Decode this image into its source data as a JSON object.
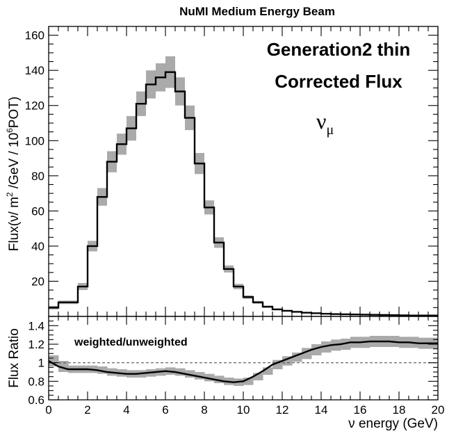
{
  "chart_data": [
    {
      "type": "histogram",
      "title": "NuMI Medium Energy Beam",
      "annotation_line1": "Generation2 thin",
      "annotation_line2": "Corrected Flux",
      "annotation_symbol": "ν",
      "annotation_subscript": "μ",
      "ylabel": {
        "main": "Flux(ν/ m",
        "sup1": "2",
        "mid": " /GeV / 10",
        "sup2": "6",
        "end": "POT)"
      },
      "xlim": [
        0,
        20
      ],
      "ylim": [
        0,
        165
      ],
      "yticks": [
        20,
        40,
        60,
        80,
        100,
        120,
        140,
        160
      ],
      "bin_edges": [
        0,
        0.5,
        1,
        1.5,
        2,
        2.5,
        3,
        3.5,
        4,
        4.5,
        5,
        5.5,
        6,
        6.5,
        7,
        7.5,
        8,
        8.5,
        9,
        9.5,
        10,
        10.5,
        11,
        11.5,
        12,
        12.5,
        13,
        13.5,
        14,
        14.5,
        15,
        15.5,
        16,
        16.5,
        17,
        17.5,
        18,
        18.5,
        19,
        19.5,
        20
      ],
      "values": [
        5,
        8,
        8,
        17,
        40,
        68,
        88,
        98,
        107,
        121,
        132,
        136,
        139,
        128,
        113,
        87,
        62,
        42,
        27,
        17,
        11,
        8,
        5.5,
        4,
        3.2,
        2.6,
        2.1,
        1.8,
        1.5,
        1.3,
        1.2,
        1.1,
        1,
        0.9,
        0.8,
        0.7,
        0.6,
        0.5,
        0.5,
        0.5
      ],
      "errors": [
        1,
        1,
        1,
        2,
        3,
        5,
        6,
        6,
        7,
        7,
        8,
        8,
        9,
        8,
        7,
        6,
        4,
        3,
        2,
        1.5,
        1,
        0.8,
        0.6,
        0.5,
        0.4,
        0.3,
        0.3,
        0.3,
        0.3,
        0.3,
        0.3,
        0.3,
        0.3,
        0.3,
        0.3,
        0.3,
        0.3,
        0.3,
        0.3,
        0.3
      ],
      "colors": {
        "line": "#000000",
        "band": "#aaaaaa"
      }
    },
    {
      "type": "line",
      "label": "weighted/unweighted",
      "ylabel": "Flux Ratio",
      "xlabel": "ν energy (GeV)",
      "xlim": [
        0,
        20
      ],
      "ylim": [
        0.6,
        1.5
      ],
      "xticks": [
        0,
        2,
        4,
        6,
        8,
        10,
        12,
        14,
        16,
        18,
        20
      ],
      "yticks": [
        0.6,
        0.8,
        1,
        1.2,
        1.4
      ],
      "reference_line": 1.0,
      "x": [
        0,
        0.5,
        1,
        1.5,
        2,
        2.5,
        3,
        3.5,
        4,
        4.5,
        5,
        5.5,
        6,
        6.5,
        7,
        7.5,
        8,
        8.5,
        9,
        9.5,
        10,
        10.5,
        11,
        11.5,
        12,
        12.5,
        13,
        13.5,
        14,
        14.5,
        15,
        15.5,
        16,
        16.5,
        17,
        17.5,
        18,
        18.5,
        19,
        19.5,
        20
      ],
      "values": [
        1.02,
        0.96,
        0.93,
        0.93,
        0.93,
        0.92,
        0.9,
        0.89,
        0.88,
        0.88,
        0.89,
        0.9,
        0.91,
        0.9,
        0.88,
        0.86,
        0.84,
        0.82,
        0.8,
        0.79,
        0.8,
        0.85,
        0.91,
        0.98,
        1.02,
        1.06,
        1.1,
        1.14,
        1.17,
        1.19,
        1.2,
        1.22,
        1.22,
        1.23,
        1.23,
        1.23,
        1.22,
        1.22,
        1.21,
        1.21,
        1.21
      ],
      "errors": [
        0.06,
        0.06,
        0.04,
        0.04,
        0.04,
        0.04,
        0.04,
        0.04,
        0.04,
        0.04,
        0.04,
        0.04,
        0.04,
        0.04,
        0.04,
        0.04,
        0.04,
        0.04,
        0.04,
        0.04,
        0.04,
        0.04,
        0.04,
        0.05,
        0.05,
        0.05,
        0.06,
        0.06,
        0.06,
        0.06,
        0.06,
        0.06,
        0.06,
        0.06,
        0.06,
        0.06,
        0.06,
        0.06,
        0.06,
        0.06,
        0.06
      ],
      "colors": {
        "line": "#000000",
        "band": "#aaaaaa",
        "reference": "#555555"
      }
    }
  ]
}
